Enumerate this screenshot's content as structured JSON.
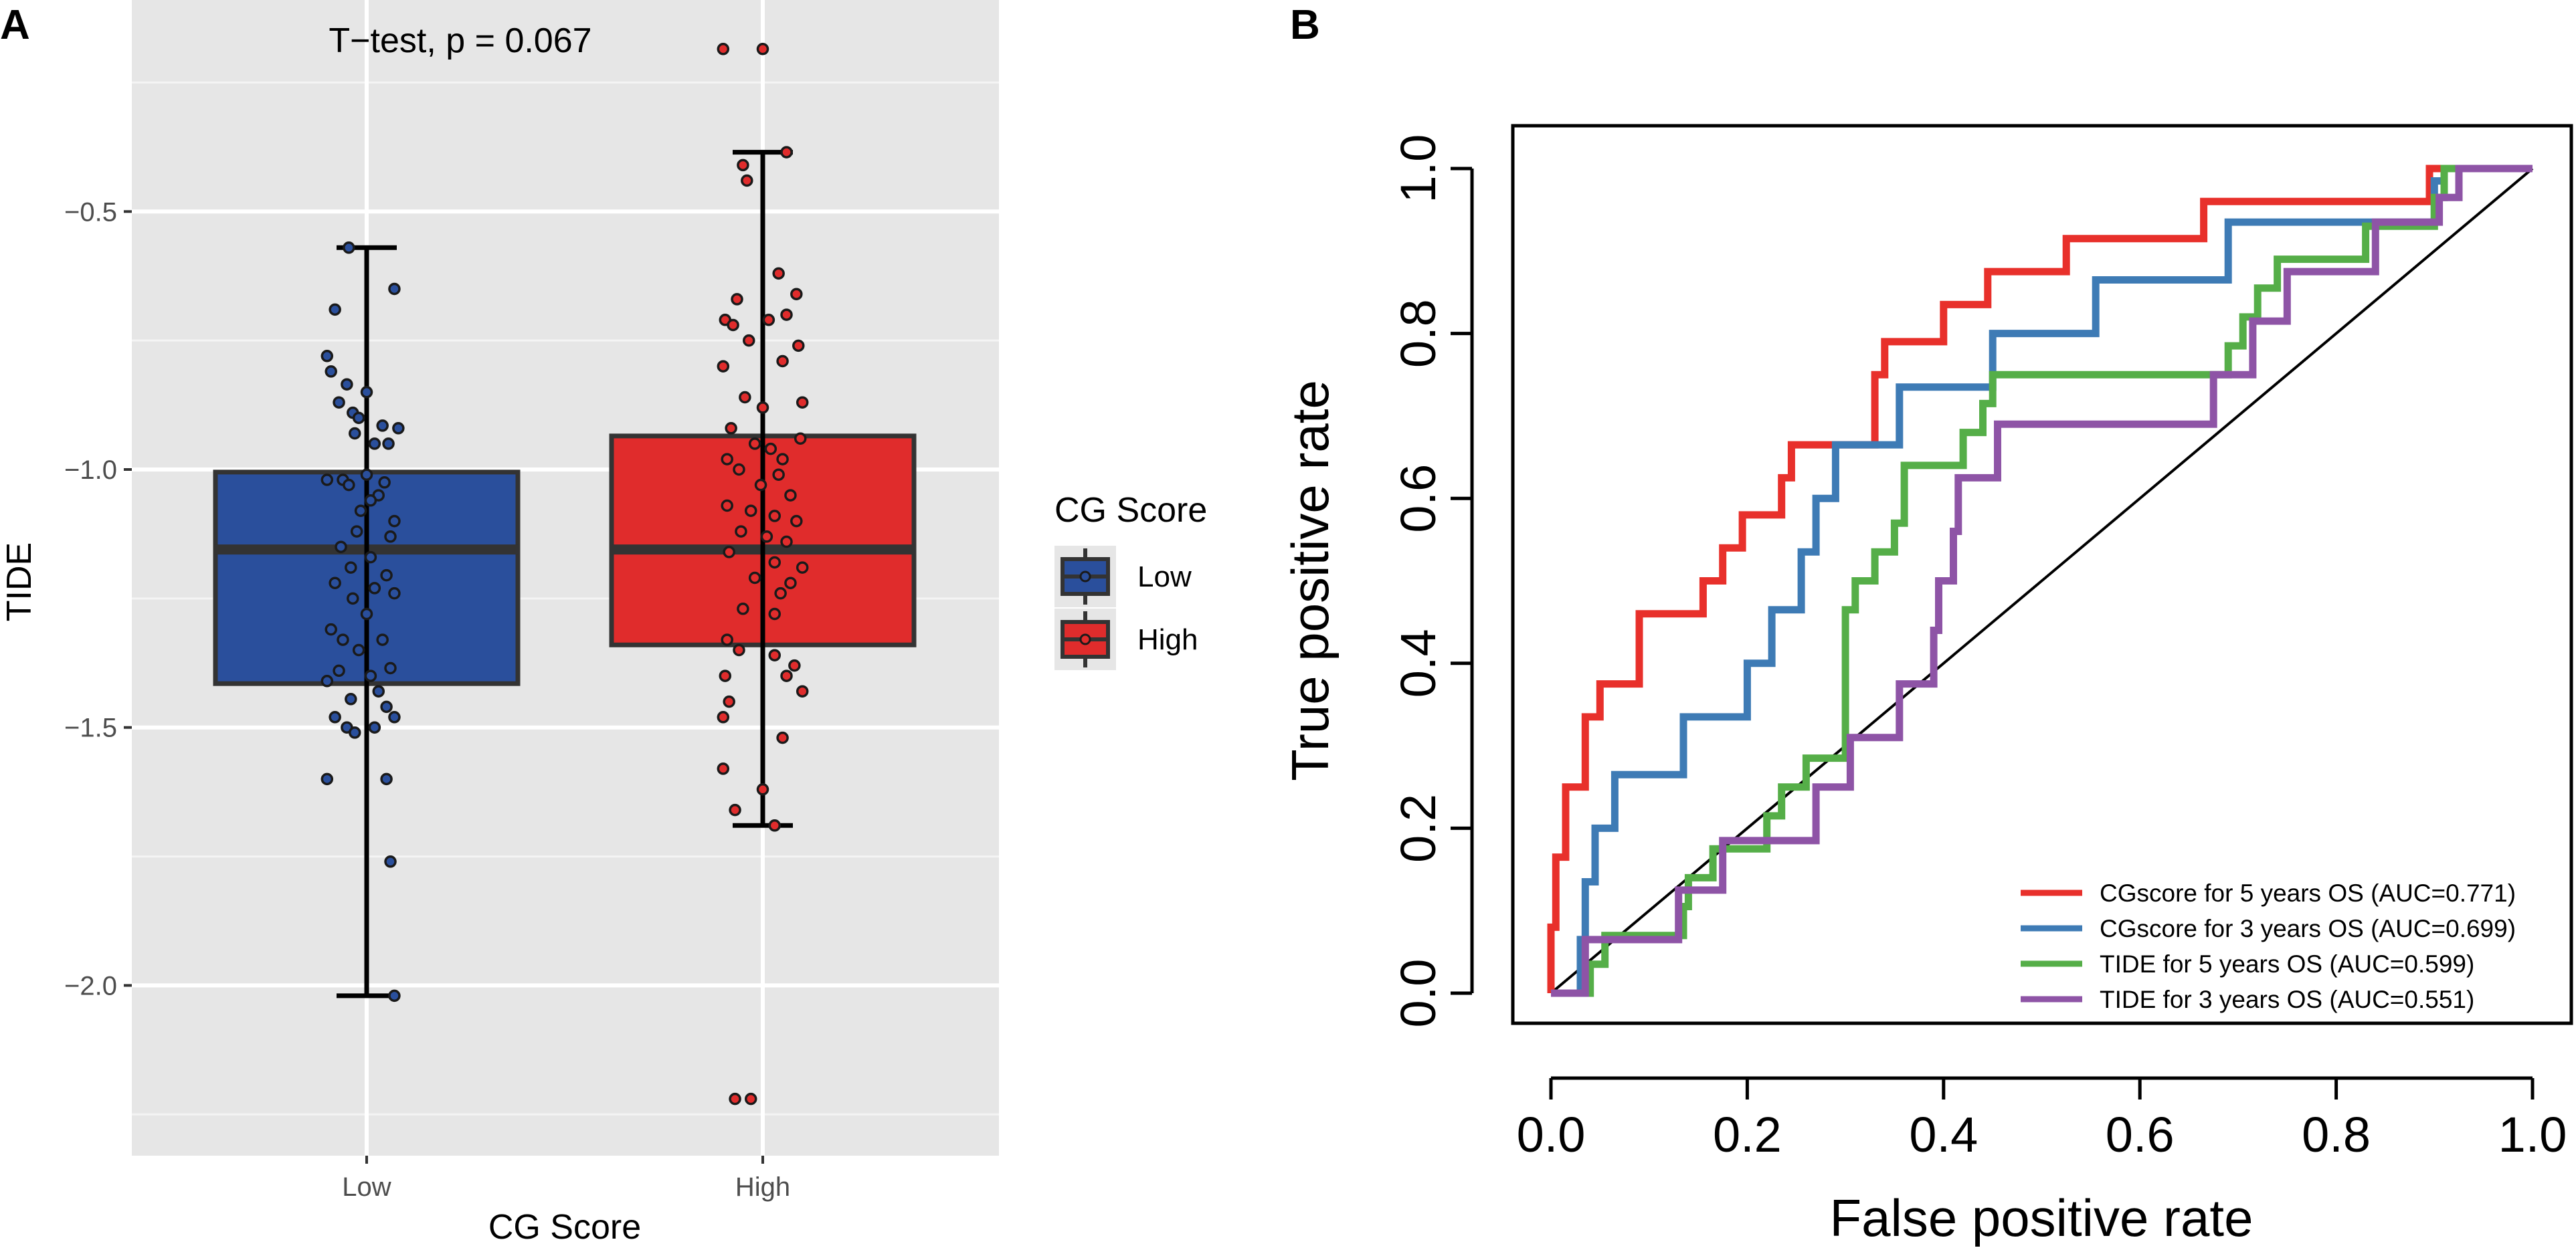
{
  "chart_data": [
    {
      "panel": "A",
      "type": "box",
      "title": "",
      "annotation": "T−test, p = 0.067",
      "xlabel": "CG Score",
      "ylabel": "TIDE",
      "categories": [
        "Low",
        "High"
      ],
      "yticks": [
        -0.5,
        -1.0,
        -1.5,
        -2.0
      ],
      "ytick_labels": [
        "−0.5",
        "−1.0",
        "−1.5",
        "−2.0"
      ],
      "ylim": [
        -2.33,
        -0.09
      ],
      "legend_title": "CG Score",
      "legend_position": "right",
      "series": [
        {
          "name": "Low",
          "color": "#2a4f9c",
          "q1": -1.415,
          "median": -1.155,
          "q3": -1.005,
          "whisker_low": -2.02,
          "whisker_high": -0.57,
          "points": [
            [
              -0.045,
              -0.57
            ],
            [
              0.07,
              -0.65
            ],
            [
              -0.08,
              -0.69
            ],
            [
              -0.1,
              -0.78
            ],
            [
              -0.09,
              -0.81
            ],
            [
              -0.05,
              -0.835
            ],
            [
              0.0,
              -0.85
            ],
            [
              -0.07,
              -0.87
            ],
            [
              -0.035,
              -0.89
            ],
            [
              -0.02,
              -0.9
            ],
            [
              0.04,
              -0.915
            ],
            [
              0.08,
              -0.92
            ],
            [
              -0.03,
              -0.93
            ],
            [
              0.02,
              -0.95
            ],
            [
              0.055,
              -0.95
            ],
            [
              -0.06,
              -1.02
            ],
            [
              -0.1,
              -1.02
            ],
            [
              0.0,
              -1.01
            ],
            [
              0.045,
              -1.025
            ],
            [
              -0.045,
              -1.03
            ],
            [
              0.03,
              -1.05
            ],
            [
              0.01,
              -1.06
            ],
            [
              -0.015,
              -1.08
            ],
            [
              0.07,
              -1.1
            ],
            [
              -0.025,
              -1.12
            ],
            [
              0.06,
              -1.13
            ],
            [
              -0.065,
              -1.15
            ],
            [
              0.01,
              -1.17
            ],
            [
              -0.04,
              -1.19
            ],
            [
              0.05,
              -1.205
            ],
            [
              -0.08,
              -1.22
            ],
            [
              0.02,
              -1.23
            ],
            [
              0.07,
              -1.24
            ],
            [
              -0.035,
              -1.25
            ],
            [
              0.0,
              -1.28
            ],
            [
              -0.09,
              -1.31
            ],
            [
              -0.06,
              -1.33
            ],
            [
              0.04,
              -1.33
            ],
            [
              -0.02,
              -1.35
            ],
            [
              -0.07,
              -1.39
            ],
            [
              0.01,
              -1.4
            ],
            [
              0.06,
              -1.385
            ],
            [
              -0.1,
              -1.41
            ],
            [
              0.03,
              -1.43
            ],
            [
              -0.04,
              -1.445
            ],
            [
              -0.08,
              -1.48
            ],
            [
              0.05,
              -1.46
            ],
            [
              0.07,
              -1.48
            ],
            [
              -0.05,
              -1.5
            ],
            [
              -0.03,
              -1.51
            ],
            [
              0.02,
              -1.5
            ],
            [
              -0.1,
              -1.6
            ],
            [
              0.05,
              -1.6
            ],
            [
              0.06,
              -1.76
            ],
            [
              0.07,
              -2.02
            ]
          ]
        },
        {
          "name": "High",
          "color": "#e02c2c",
          "q1": -1.34,
          "median": -1.155,
          "q3": -0.935,
          "whisker_low": -1.69,
          "whisker_high": -0.385,
          "points": [
            [
              -0.1,
              -0.185
            ],
            [
              0.0,
              -0.185
            ],
            [
              0.06,
              -0.385
            ],
            [
              -0.05,
              -0.41
            ],
            [
              -0.04,
              -0.44
            ],
            [
              -0.065,
              -0.67
            ],
            [
              0.04,
              -0.62
            ],
            [
              0.085,
              -0.66
            ],
            [
              -0.095,
              -0.71
            ],
            [
              0.015,
              -0.71
            ],
            [
              -0.075,
              -0.72
            ],
            [
              0.06,
              -0.7
            ],
            [
              -0.035,
              -0.75
            ],
            [
              0.09,
              -0.76
            ],
            [
              -0.1,
              -0.8
            ],
            [
              0.05,
              -0.79
            ],
            [
              -0.045,
              -0.86
            ],
            [
              0.1,
              -0.87
            ],
            [
              0.0,
              -0.88
            ],
            [
              -0.08,
              -0.92
            ],
            [
              0.095,
              -0.94
            ],
            [
              -0.02,
              -0.95
            ],
            [
              0.02,
              -0.96
            ],
            [
              -0.09,
              -0.98
            ],
            [
              0.05,
              -0.98
            ],
            [
              -0.06,
              -1.0
            ],
            [
              0.04,
              -1.01
            ],
            [
              -0.005,
              -1.03
            ],
            [
              0.07,
              -1.05
            ],
            [
              -0.09,
              -1.07
            ],
            [
              -0.03,
              -1.08
            ],
            [
              0.03,
              -1.09
            ],
            [
              0.085,
              -1.1
            ],
            [
              -0.055,
              -1.12
            ],
            [
              0.01,
              -1.13
            ],
            [
              0.06,
              -1.14
            ],
            [
              -0.085,
              -1.16
            ],
            [
              0.03,
              -1.18
            ],
            [
              0.1,
              -1.19
            ],
            [
              -0.02,
              -1.21
            ],
            [
              0.07,
              -1.22
            ],
            [
              0.045,
              -1.24
            ],
            [
              -0.05,
              -1.27
            ],
            [
              0.03,
              -1.28
            ],
            [
              -0.09,
              -1.33
            ],
            [
              -0.06,
              -1.35
            ],
            [
              0.03,
              -1.36
            ],
            [
              0.08,
              -1.38
            ],
            [
              -0.095,
              -1.4
            ],
            [
              0.06,
              -1.4
            ],
            [
              0.1,
              -1.43
            ],
            [
              -0.085,
              -1.45
            ],
            [
              -0.1,
              -1.48
            ],
            [
              0.05,
              -1.52
            ],
            [
              -0.1,
              -1.58
            ],
            [
              0.0,
              -1.62
            ],
            [
              -0.07,
              -1.66
            ],
            [
              0.03,
              -1.69
            ],
            [
              -0.07,
              -2.22
            ],
            [
              -0.03,
              -2.22
            ]
          ]
        }
      ]
    },
    {
      "panel": "B",
      "type": "line",
      "title": "",
      "xlabel": "False positive rate",
      "ylabel": "True positive rate",
      "xlim": [
        0,
        1
      ],
      "ylim": [
        0,
        1
      ],
      "xticks": [
        0,
        0.2,
        0.4,
        0.6,
        0.8,
        1.0
      ],
      "xtick_labels": [
        "0.0",
        "0.2",
        "0.4",
        "0.6",
        "0.8",
        "1.0"
      ],
      "yticks": [
        0,
        0.2,
        0.4,
        0.6,
        0.8,
        1.0
      ],
      "ytick_labels": [
        "0.0",
        "0.2",
        "0.4",
        "0.6",
        "0.8",
        "1.0"
      ],
      "diagonal": true,
      "legend_position": "bottom-right",
      "series": [
        {
          "name": "CGscore for 5 years OS (AUC=0.771)",
          "color": "#e8302b",
          "x": [
            0,
            0,
            0.005,
            0.005,
            0.015,
            0.015,
            0.035,
            0.035,
            0.05,
            0.05,
            0.09,
            0.09,
            0.155,
            0.155,
            0.175,
            0.175,
            0.195,
            0.195,
            0.235,
            0.235,
            0.245,
            0.245,
            0.26,
            0.26,
            0.27,
            0.27,
            0.33,
            0.33,
            0.34,
            0.34,
            0.4,
            0.4,
            0.445,
            0.445,
            0.525,
            0.525,
            0.615,
            0.615,
            0.665,
            0.665,
            0.69,
            0.69,
            0.895,
            0.895,
            0.905,
            0.905,
            1.0
          ],
          "y": [
            0,
            0.08,
            0.08,
            0.165,
            0.165,
            0.25,
            0.25,
            0.335,
            0.335,
            0.375,
            0.375,
            0.46,
            0.46,
            0.5,
            0.5,
            0.54,
            0.54,
            0.58,
            0.58,
            0.625,
            0.625,
            0.665,
            0.665,
            0.665,
            0.665,
            0.665,
            0.665,
            0.75,
            0.75,
            0.79,
            0.79,
            0.835,
            0.835,
            0.875,
            0.875,
            0.915,
            0.915,
            0.915,
            0.915,
            0.96,
            0.96,
            0.96,
            0.96,
            1.0,
            1.0,
            1.0,
            1.0
          ]
        },
        {
          "name": "CGscore for 3 years OS (AUC=0.699)",
          "color": "#3e7bb5",
          "x": [
            0,
            0.03,
            0.03,
            0.035,
            0.035,
            0.045,
            0.045,
            0.065,
            0.065,
            0.135,
            0.135,
            0.2,
            0.2,
            0.225,
            0.225,
            0.255,
            0.255,
            0.27,
            0.27,
            0.29,
            0.29,
            0.355,
            0.355,
            0.39,
            0.39,
            0.45,
            0.45,
            0.555,
            0.555,
            0.69,
            0.69,
            0.9,
            0.9,
            0.91,
            0.91,
            1.0
          ],
          "y": [
            0,
            0,
            0.065,
            0.065,
            0.135,
            0.135,
            0.2,
            0.2,
            0.265,
            0.265,
            0.335,
            0.335,
            0.4,
            0.4,
            0.465,
            0.465,
            0.535,
            0.535,
            0.6,
            0.6,
            0.665,
            0.665,
            0.735,
            0.735,
            0.735,
            0.735,
            0.8,
            0.8,
            0.865,
            0.865,
            0.935,
            0.935,
            0.985,
            0.985,
            1.0,
            1.0
          ]
        },
        {
          "name": "TIDE for 5 years OS (AUC=0.599)",
          "color": "#55ae48",
          "x": [
            0,
            0.04,
            0.04,
            0.055,
            0.055,
            0.135,
            0.135,
            0.14,
            0.14,
            0.165,
            0.165,
            0.22,
            0.22,
            0.235,
            0.235,
            0.26,
            0.26,
            0.29,
            0.29,
            0.3,
            0.3,
            0.31,
            0.31,
            0.33,
            0.33,
            0.35,
            0.35,
            0.36,
            0.36,
            0.375,
            0.375,
            0.42,
            0.42,
            0.44,
            0.44,
            0.45,
            0.45,
            0.46,
            0.46,
            0.64,
            0.66,
            0.69,
            0.69,
            0.705,
            0.705,
            0.72,
            0.72,
            0.74,
            0.74,
            0.77,
            0.77,
            0.83,
            0.83,
            0.9,
            0.9,
            0.91,
            0.91,
            0.91,
            1.0
          ],
          "y": [
            0,
            0,
            0.035,
            0.035,
            0.07,
            0.07,
            0.105,
            0.105,
            0.14,
            0.14,
            0.175,
            0.175,
            0.215,
            0.215,
            0.25,
            0.25,
            0.285,
            0.285,
            0.285,
            0.285,
            0.465,
            0.465,
            0.5,
            0.5,
            0.535,
            0.535,
            0.57,
            0.57,
            0.64,
            0.64,
            0.64,
            0.64,
            0.68,
            0.68,
            0.715,
            0.715,
            0.75,
            0.75,
            0.75,
            0.75,
            0.75,
            0.75,
            0.785,
            0.785,
            0.82,
            0.82,
            0.855,
            0.855,
            0.89,
            0.89,
            0.89,
            0.89,
            0.93,
            0.93,
            0.965,
            0.965,
            1.0,
            1.0,
            1.0
          ]
        },
        {
          "name": "TIDE for 3 years OS (AUC=0.551)",
          "color": "#8e54a6",
          "x": [
            0,
            0.035,
            0.035,
            0.13,
            0.13,
            0.175,
            0.175,
            0.27,
            0.27,
            0.3,
            0.3,
            0.305,
            0.305,
            0.315,
            0.315,
            0.355,
            0.355,
            0.365,
            0.365,
            0.39,
            0.39,
            0.395,
            0.395,
            0.41,
            0.41,
            0.415,
            0.415,
            0.455,
            0.455,
            0.64,
            0.66,
            0.675,
            0.675,
            0.705,
            0.705,
            0.715,
            0.715,
            0.75,
            0.75,
            0.84,
            0.84,
            0.905,
            0.905,
            0.925,
            0.925,
            1.0
          ],
          "y": [
            0,
            0,
            0.065,
            0.065,
            0.125,
            0.125,
            0.185,
            0.185,
            0.25,
            0.25,
            0.25,
            0.25,
            0.31,
            0.31,
            0.31,
            0.31,
            0.375,
            0.375,
            0.375,
            0.375,
            0.44,
            0.44,
            0.5,
            0.5,
            0.56,
            0.56,
            0.625,
            0.625,
            0.69,
            0.69,
            0.69,
            0.69,
            0.75,
            0.75,
            0.75,
            0.75,
            0.815,
            0.815,
            0.875,
            0.875,
            0.935,
            0.935,
            0.965,
            0.965,
            1.0,
            1.0
          ]
        }
      ]
    }
  ]
}
